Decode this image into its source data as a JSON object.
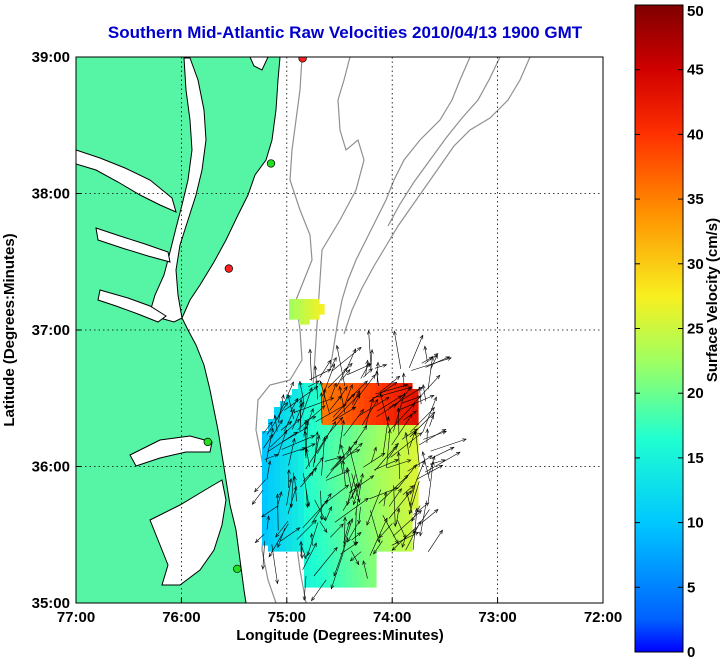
{
  "chart_data": {
    "type": "heatmap",
    "title": "Southern Mid-Atlantic Raw Velocities 2010/04/13 1900 GMT",
    "xlabel": "Longitude (Degrees:Minutes)",
    "ylabel": "Latitude (Degrees:Minutes)",
    "colorbar_label": "Surface Velocity (cm/s)",
    "x_ticks": [
      {
        "value": -77,
        "label": "77:00"
      },
      {
        "value": -76,
        "label": "76:00"
      },
      {
        "value": -75,
        "label": "75:00"
      },
      {
        "value": -74,
        "label": "74:00"
      },
      {
        "value": -73,
        "label": "73:00"
      },
      {
        "value": -72,
        "label": "72:00"
      }
    ],
    "y_ticks": [
      {
        "value": 35,
        "label": "35:00"
      },
      {
        "value": 36,
        "label": "36:00"
      },
      {
        "value": 37,
        "label": "37:00"
      },
      {
        "value": 38,
        "label": "38:00"
      },
      {
        "value": 39,
        "label": "39:00"
      }
    ],
    "xlim": [
      -77,
      -72
    ],
    "ylim": [
      35,
      39
    ],
    "colorbar_ticks": [
      0,
      5,
      10,
      15,
      20,
      25,
      30,
      35,
      40,
      45,
      50
    ],
    "colorbar_range": [
      0,
      50
    ],
    "grid": "dotted",
    "land_color": "#55f5a5",
    "title_color": "#0000cc",
    "stations": [
      {
        "lon": -74.85,
        "lat": 38.99,
        "color": "#ff2020"
      },
      {
        "lon": -75.15,
        "lat": 38.22,
        "color": "#20e020"
      },
      {
        "lon": -75.55,
        "lat": 37.45,
        "color": "#ff2020"
      },
      {
        "lon": -75.75,
        "lat": 36.18,
        "color": "#20e020"
      },
      {
        "lon": -75.47,
        "lat": 35.25,
        "color": "#20e020"
      }
    ]
  }
}
